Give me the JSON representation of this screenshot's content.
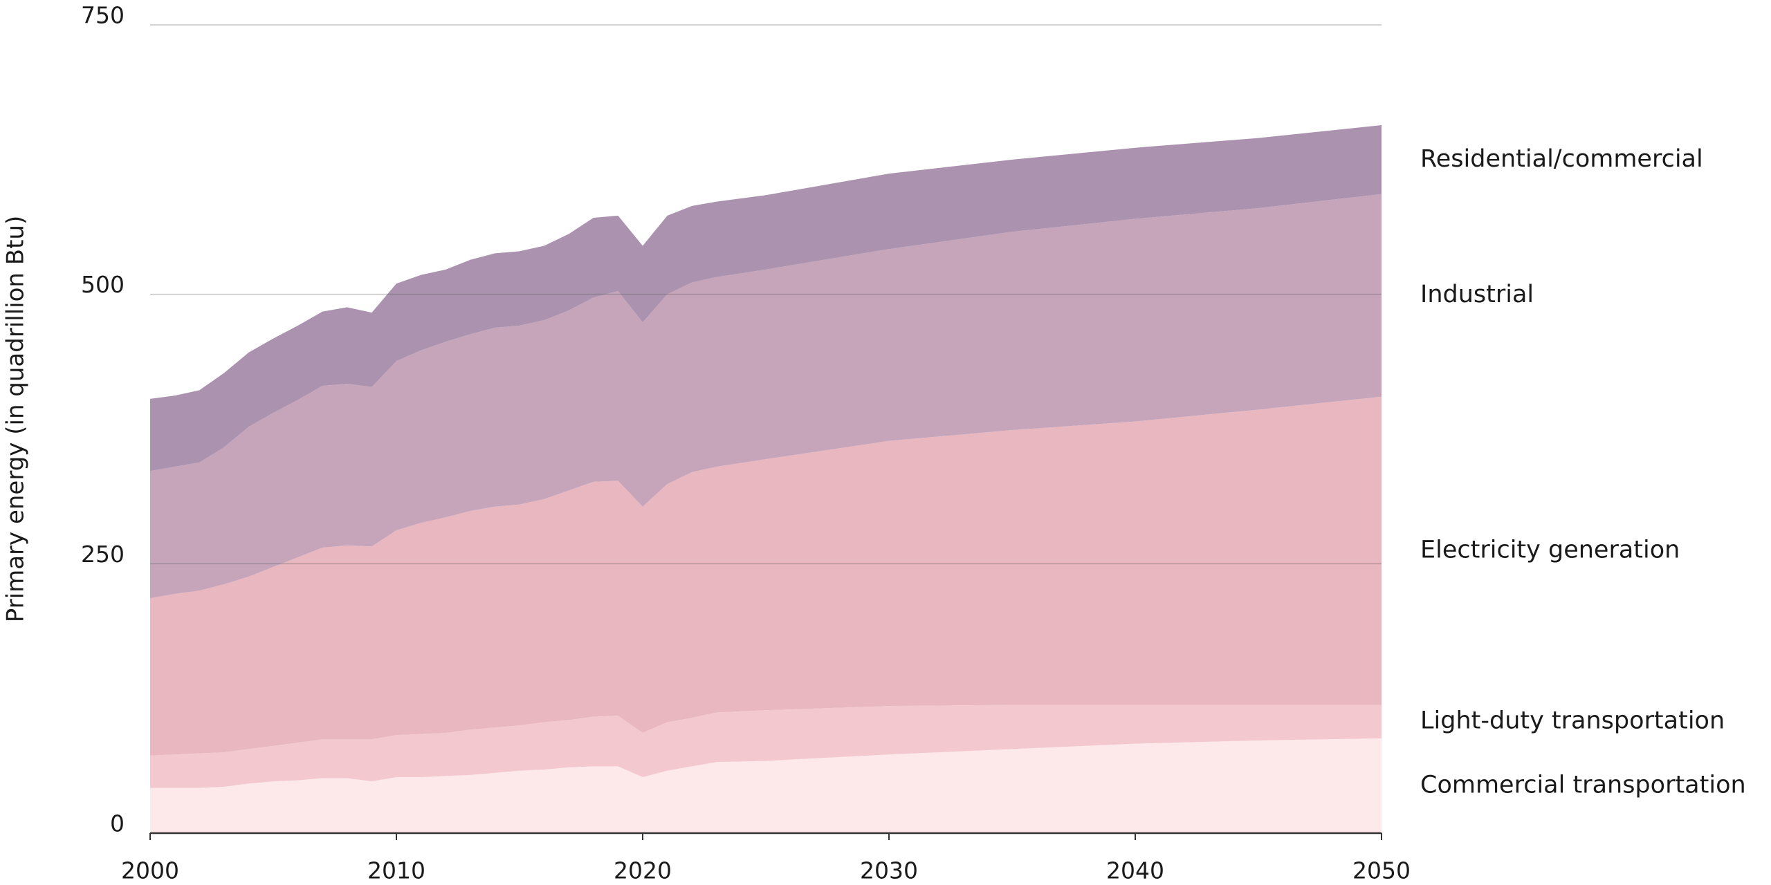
{
  "chart_data": {
    "type": "stacked-area",
    "y_label": "Primary energy (in quadrillion Btu)",
    "x": [
      2000,
      2001,
      2002,
      2003,
      2004,
      2005,
      2006,
      2007,
      2008,
      2009,
      2010,
      2011,
      2012,
      2013,
      2014,
      2015,
      2016,
      2017,
      2018,
      2019,
      2020,
      2021,
      2022,
      2023,
      2025,
      2030,
      2035,
      2040,
      2045,
      2050
    ],
    "xlim": [
      2000,
      2050
    ],
    "xticks": [
      2000,
      2010,
      2020,
      2030,
      2040,
      2050
    ],
    "ylim": [
      0,
      750
    ],
    "yticks": [
      0,
      250,
      500,
      750
    ],
    "grid": true,
    "series": [
      {
        "name": "Commercial transportation",
        "color": "#fde8ea",
        "values": [
          42,
          42,
          42,
          43,
          46,
          48,
          49,
          51,
          51,
          48,
          52,
          52,
          53,
          54,
          56,
          58,
          59,
          61,
          62,
          62,
          52,
          58,
          62,
          66,
          67,
          73,
          78,
          83,
          86,
          88
        ]
      },
      {
        "name": "Light-duty transportation",
        "color": "#f3c9cf",
        "values": [
          30,
          31,
          32,
          32,
          32,
          33,
          35,
          36,
          36,
          39,
          39,
          40,
          40,
          42,
          42,
          42,
          44,
          44,
          46,
          47,
          41,
          45,
          45,
          46,
          47,
          45,
          41,
          36,
          33,
          31
        ]
      },
      {
        "name": "Electricity generation",
        "color": "#e8b7bf",
        "values": [
          146,
          149,
          151,
          156,
          160,
          166,
          172,
          178,
          180,
          179,
          190,
          196,
          200,
          203,
          205,
          205,
          207,
          213,
          218,
          218,
          210,
          221,
          228,
          228,
          233,
          246,
          255,
          263,
          274,
          286
        ]
      },
      {
        "name": "Industrial",
        "color": "#c6a5bb",
        "values": [
          118,
          118,
          119,
          127,
          139,
          143,
          146,
          150,
          150,
          148,
          157,
          160,
          163,
          164,
          166,
          166,
          166,
          167,
          171,
          176,
          171,
          176,
          176,
          176,
          176,
          178,
          184,
          188,
          187,
          188
        ]
      },
      {
        "name": "Residential/commercial",
        "color": "#ab93af",
        "values": [
          67,
          66,
          67,
          69,
          69,
          69,
          69,
          69,
          71,
          69,
          72,
          70,
          67,
          69,
          69,
          69,
          69,
          71,
          74,
          70,
          71,
          73,
          71,
          70,
          69,
          70,
          67,
          66,
          65,
          64
        ]
      }
    ]
  }
}
